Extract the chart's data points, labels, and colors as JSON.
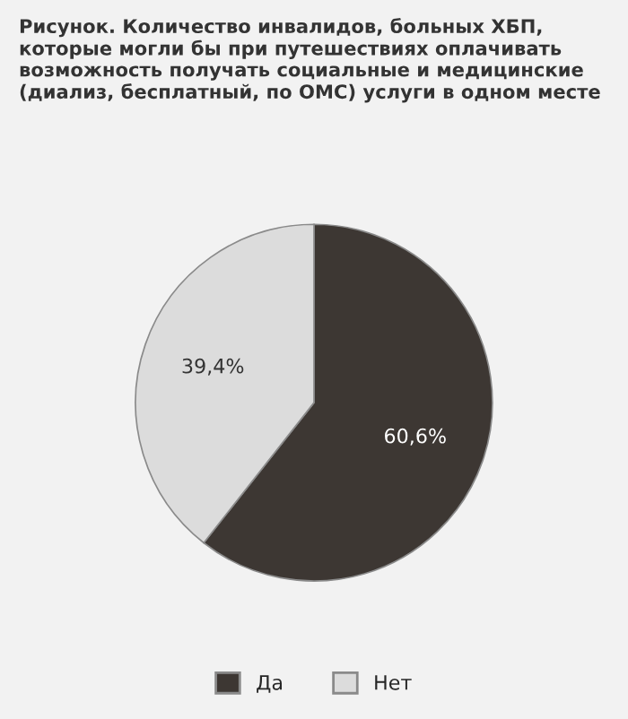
{
  "chart_data": {
    "type": "pie",
    "title": "Рисунок. Количество инвалидов, больных ХБП, которые могли бы при путешествиях оплачивать возможность получать социальные и медицинские (диализ, бесплатный, по ОМС) услуги в одном месте",
    "categories": [
      "Да",
      "Нет"
    ],
    "values": [
      60.6,
      39.4
    ],
    "colors": [
      "#3d3733",
      "#dcdcdc"
    ],
    "value_labels": [
      "60,6%",
      "39,4%"
    ],
    "legend": "bottom"
  }
}
